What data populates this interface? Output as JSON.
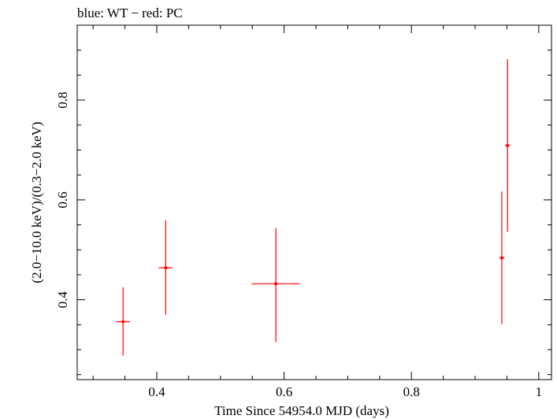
{
  "chart_data": {
    "type": "scatter",
    "title": "blue: WT − red: PC",
    "xlabel": "Time Since 54954.0 MJD (days)",
    "ylabel": "(2.0−10.0 keV)/(0.3−2.0 keV)",
    "xlim": [
      0.275,
      1.02
    ],
    "ylim": [
      0.24,
      0.95
    ],
    "xticks": [
      0.4,
      0.6,
      0.8,
      1
    ],
    "xtick_labels": [
      "0.4",
      "0.6",
      "0.8",
      "1"
    ],
    "yticks": [
      0.4,
      0.6,
      0.8
    ],
    "ytick_labels": [
      "0.4",
      "0.6",
      "0.8"
    ],
    "series": [
      {
        "color": "#ff0000",
        "points": [
          {
            "x": 0.347,
            "y": 0.356,
            "xerr": 0.011,
            "yerr_low": 0.068,
            "yerr_high": 0.069
          },
          {
            "x": 0.414,
            "y": 0.464,
            "xerr": 0.011,
            "yerr_low": 0.094,
            "yerr_high": 0.095
          },
          {
            "x": 0.587,
            "y": 0.432,
            "xerr": 0.038,
            "yerr_low": 0.117,
            "yerr_high": 0.112
          },
          {
            "x": 0.942,
            "y": 0.484,
            "xerr": 0.004,
            "yerr_low": 0.133,
            "yerr_high": 0.133
          },
          {
            "x": 0.951,
            "y": 0.709,
            "xerr": 0.004,
            "yerr_low": 0.173,
            "yerr_high": 0.173
          }
        ]
      }
    ],
    "grid": false
  }
}
